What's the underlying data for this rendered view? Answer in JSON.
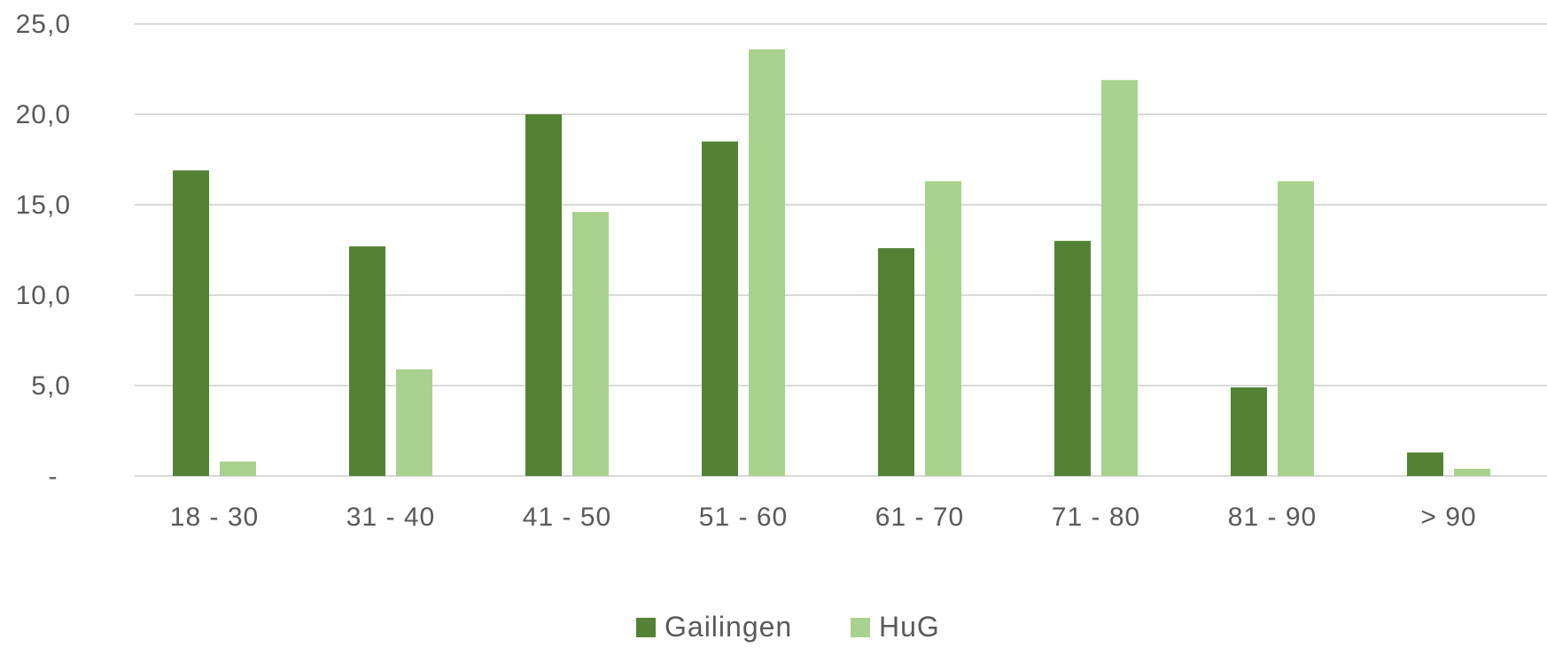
{
  "chart_data": {
    "type": "bar",
    "categories": [
      "18 - 30",
      "31 - 40",
      "41 - 50",
      "51 - 60",
      "61 - 70",
      "71 - 80",
      "81 - 90",
      "> 90"
    ],
    "series": [
      {
        "name": "Gailingen",
        "color": "#548235",
        "values": [
          16.9,
          12.7,
          20.0,
          18.5,
          12.6,
          13.0,
          4.9,
          1.3
        ]
      },
      {
        "name": "HuG",
        "color": "#a9d18e",
        "values": [
          0.8,
          5.9,
          14.6,
          23.6,
          16.3,
          21.9,
          16.3,
          0.4
        ]
      }
    ],
    "ylim": [
      0,
      25
    ],
    "yticks": [
      {
        "value": 0,
        "label": "-"
      },
      {
        "value": 5,
        "label": "5,0"
      },
      {
        "value": 10,
        "label": "10,0"
      },
      {
        "value": 15,
        "label": "15,0"
      },
      {
        "value": 20,
        "label": "20,0"
      },
      {
        "value": 25,
        "label": "25,0"
      }
    ],
    "grid": true,
    "gridline_color": "#d9d9d9",
    "legend_position": "bottom",
    "title": "",
    "xlabel": "",
    "ylabel": ""
  }
}
